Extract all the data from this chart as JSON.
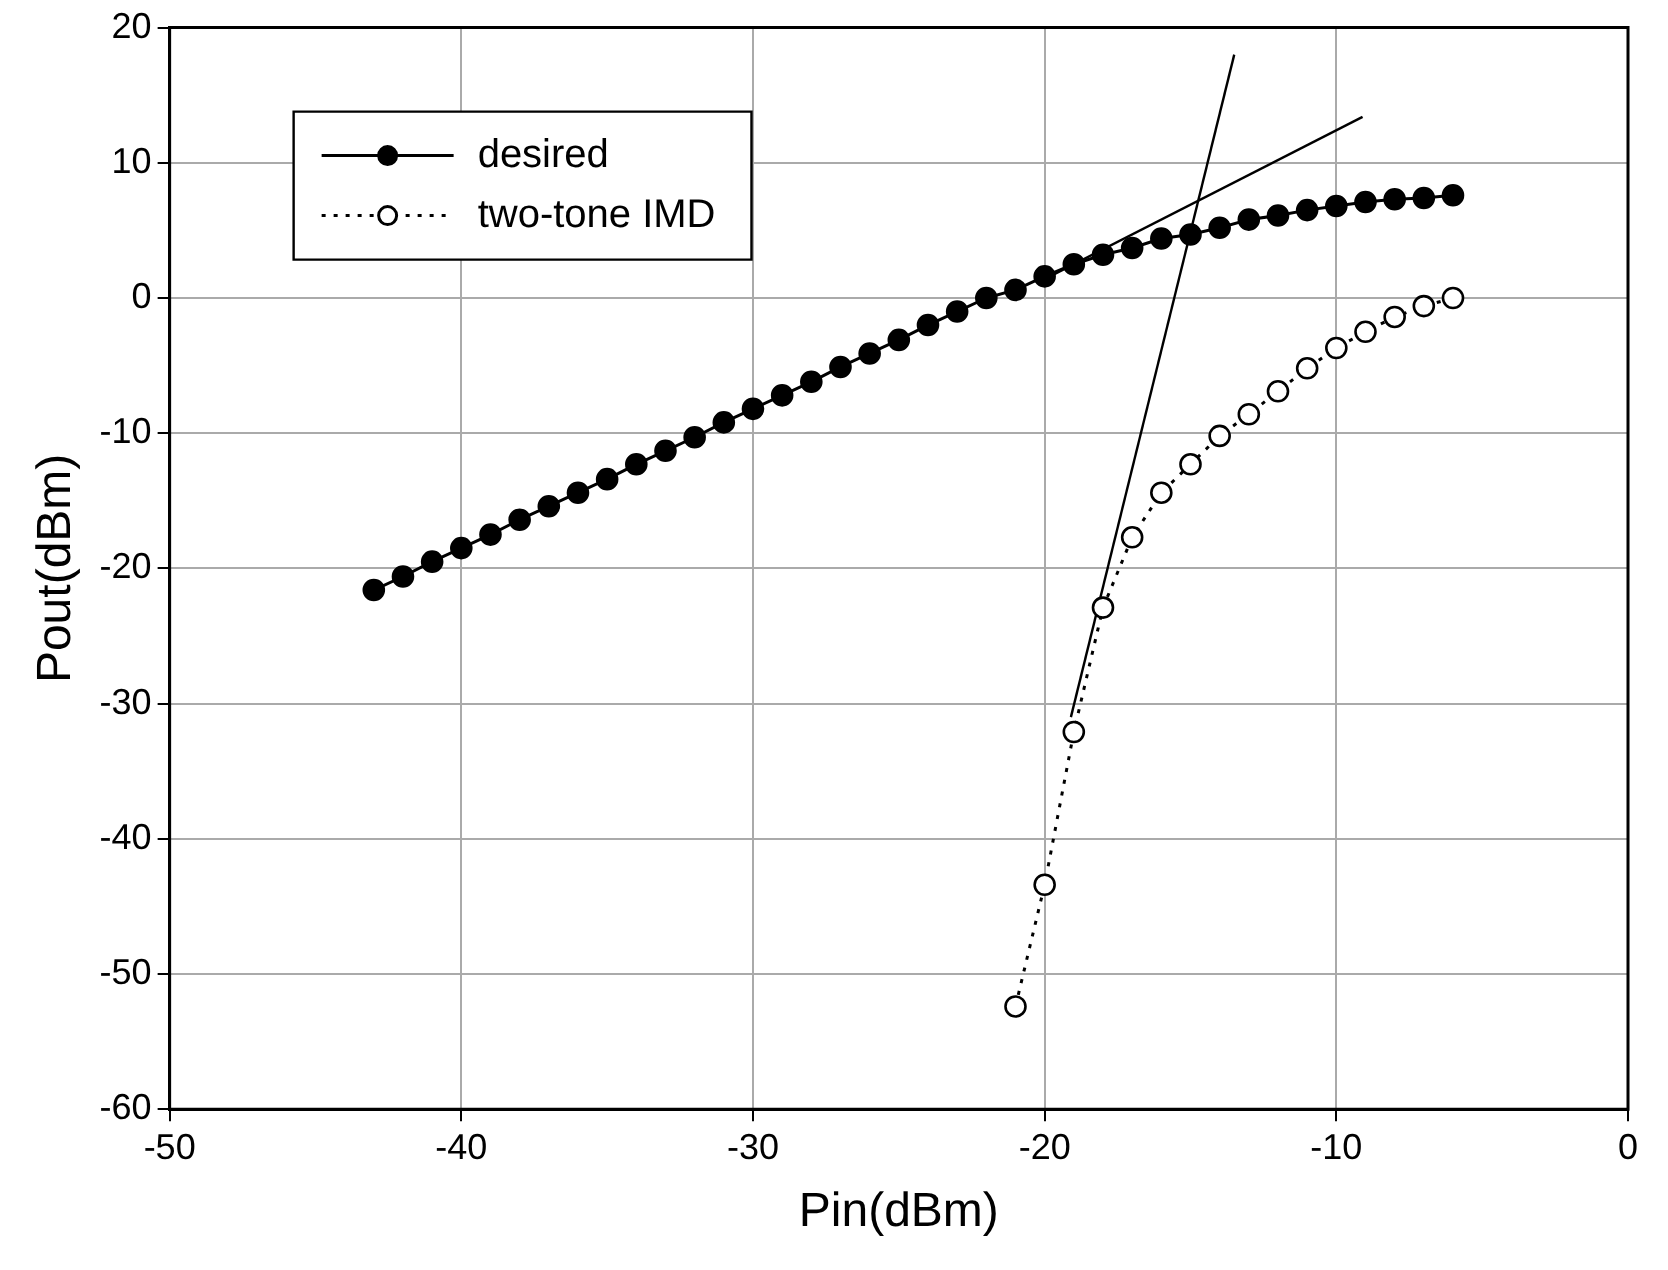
{
  "chart_data": {
    "type": "line",
    "xlabel": "Pin(dBm)",
    "ylabel": "Pout(dBm)",
    "xlim": [
      -50,
      0
    ],
    "xticks": [
      -50,
      -40,
      -30,
      -20,
      -10,
      0
    ],
    "ylim": [
      -60,
      20
    ],
    "yticks": [
      -60,
      -50,
      -40,
      -30,
      -20,
      -10,
      0,
      10,
      20
    ],
    "grid": true,
    "legend": "top left",
    "marker": "circle",
    "series": [
      {
        "name": "desired",
        "color": "#000000",
        "line_style": "solid",
        "x": [
          -43,
          -42,
          -41,
          -40,
          -39,
          -38,
          -37,
          -36,
          -35,
          -34,
          -33,
          -32,
          -31,
          -30,
          -29,
          -28,
          -27,
          -26,
          -25,
          -24,
          -23,
          -22,
          -21,
          -20,
          -19,
          -18,
          -17,
          -16,
          -15,
          -14,
          -13,
          -12,
          -11,
          -10,
          -9,
          -8,
          -7,
          -6
        ],
        "values": [
          -21.6,
          -20.6,
          -19.5,
          -18.5,
          -17.5,
          -16.4,
          -15.4,
          -14.4,
          -13.4,
          -12.3,
          -11.3,
          -10.3,
          -9.2,
          -8.2,
          -7.2,
          -6.2,
          -5.1,
          -4.1,
          -3.1,
          -2.0,
          -1.0,
          0,
          0.6,
          1.6,
          2.5,
          3.2,
          3.7,
          4.4,
          4.7,
          5.2,
          5.8,
          6.1,
          6.5,
          6.8,
          7.1,
          7.3,
          7.4,
          7.6
        ]
      },
      {
        "name": "two-tone IMD",
        "color": "#000000",
        "line_style": "dotted",
        "x": [
          -21,
          -20,
          -19,
          -18,
          -17,
          -16,
          -15,
          -14,
          -13,
          -12,
          -11,
          -10,
          -9,
          -8,
          -7,
          -6
        ],
        "values": [
          -52.4,
          -43.4,
          -32.1,
          -22.9,
          -17.7,
          -14.4,
          -12.3,
          -10.2,
          -8.6,
          -6.9,
          -5.2,
          -3.7,
          -2.5,
          -1.4,
          -0.6,
          0.0
        ]
      },
      {
        "type": "line",
        "color": "#000000",
        "marker": "none",
        "line_style": "solid",
        "x": [
          -20,
          -9.1
        ],
        "values": [
          1.4,
          13.4
        ]
      },
      {
        "type": "line",
        "color": "#000000",
        "marker": "none",
        "line_style": "solid",
        "x": [
          -19.1,
          -13.5
        ],
        "values": [
          -31,
          18
        ]
      }
    ]
  }
}
